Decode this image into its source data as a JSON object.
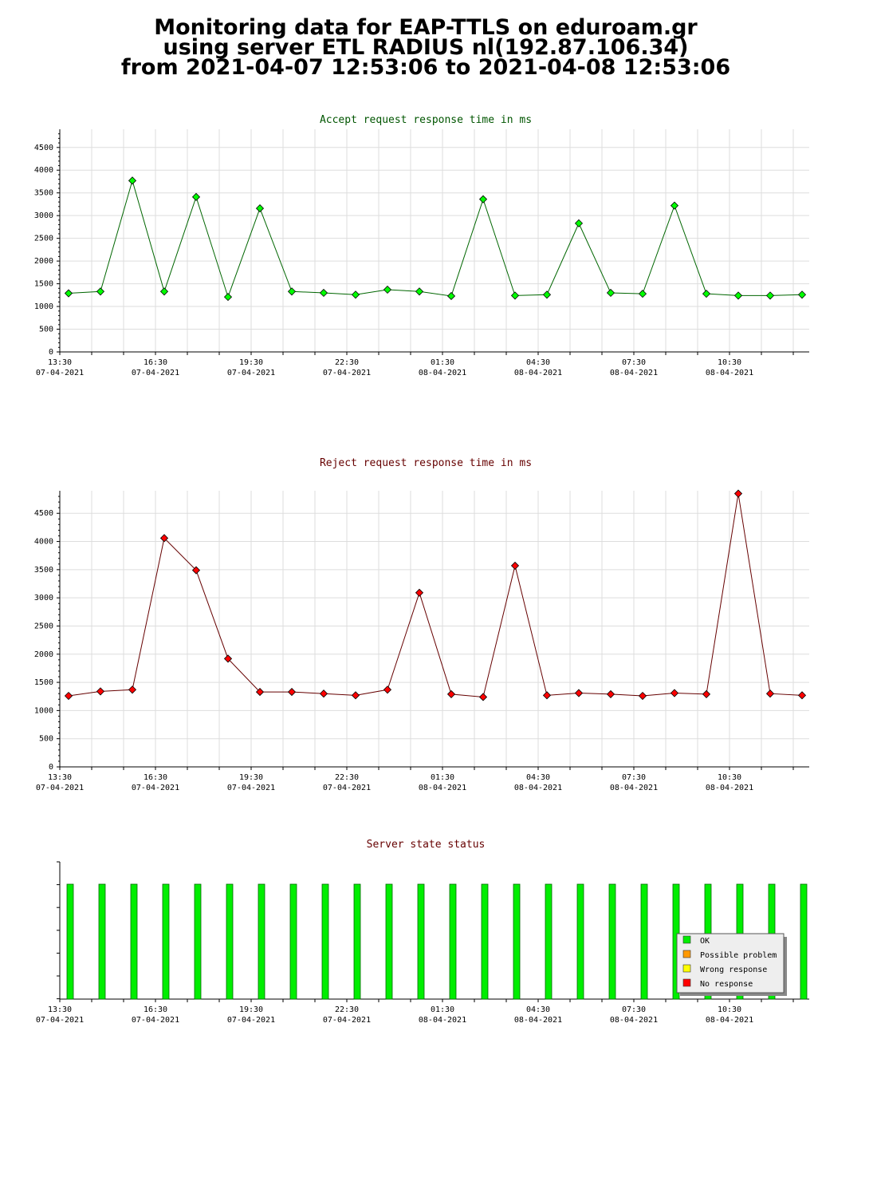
{
  "title_lines": [
    "Monitoring data for EAP-TTLS on eduroam.gr",
    "using server ETL RADIUS nl(192.87.106.34)",
    "from 2021-04-07 12:53:06 to 2021-04-08 12:53:06"
  ],
  "x_axis": {
    "ticks": [
      {
        "time": "13:30",
        "date": "07-04-2021"
      },
      {
        "time": "16:30",
        "date": "07-04-2021"
      },
      {
        "time": "19:30",
        "date": "07-04-2021"
      },
      {
        "time": "22:30",
        "date": "07-04-2021"
      },
      {
        "time": "01:30",
        "date": "08-04-2021"
      },
      {
        "time": "04:30",
        "date": "08-04-2021"
      },
      {
        "time": "07:30",
        "date": "08-04-2021"
      },
      {
        "time": "10:30",
        "date": "08-04-2021"
      }
    ]
  },
  "colors": {
    "accept_marker": "#00ff00",
    "accept_line": "#006600",
    "reject_marker": "#ff0000",
    "reject_line": "#660000",
    "ok_bar": "#00ee00",
    "possible_problem": "#ff9900",
    "wrong_response": "#ffff00",
    "no_response": "#ff0000"
  },
  "chart_data": [
    {
      "type": "line",
      "title": "Accept request response time in ms",
      "x": [
        "13:53",
        "14:53",
        "15:53",
        "16:53",
        "17:53",
        "18:53",
        "19:53",
        "20:53",
        "21:53",
        "22:53",
        "23:53",
        "00:53",
        "01:53",
        "02:53",
        "03:53",
        "04:53",
        "05:53",
        "06:53",
        "07:53",
        "08:53",
        "09:53",
        "10:53",
        "11:53",
        "12:53"
      ],
      "values": [
        1290,
        1330,
        3770,
        1330,
        3410,
        1210,
        3160,
        1330,
        1300,
        1260,
        1370,
        1330,
        1230,
        3360,
        1240,
        1260,
        2830,
        1300,
        1280,
        3220,
        1280,
        1240,
        1240,
        1260
      ],
      "ylim": [
        0,
        4900
      ],
      "yticks": [
        0,
        500,
        1000,
        1500,
        2000,
        2500,
        3000,
        3500,
        4000,
        4500
      ],
      "grid": true
    },
    {
      "type": "line",
      "title": "Reject request response time in ms",
      "x": [
        "13:53",
        "14:53",
        "15:53",
        "16:53",
        "17:53",
        "18:53",
        "19:53",
        "20:53",
        "21:53",
        "22:53",
        "23:53",
        "00:53",
        "01:53",
        "02:53",
        "03:53",
        "04:53",
        "05:53",
        "06:53",
        "07:53",
        "08:53",
        "09:53",
        "10:53",
        "11:53",
        "12:53"
      ],
      "values": [
        1260,
        1340,
        1370,
        4060,
        3490,
        1920,
        1330,
        1330,
        1300,
        1270,
        1370,
        3090,
        1290,
        1240,
        3570,
        1270,
        1310,
        1290,
        1260,
        1310,
        1290,
        4850,
        1300,
        1270
      ],
      "ylim": [
        0,
        4900
      ],
      "yticks": [
        0,
        500,
        1000,
        1500,
        2000,
        2500,
        3000,
        3500,
        4000,
        4500
      ],
      "grid": true
    },
    {
      "type": "bar",
      "title": "Server state status",
      "x": [
        "13:53",
        "14:53",
        "15:53",
        "16:53",
        "17:53",
        "18:53",
        "19:53",
        "20:53",
        "21:53",
        "22:53",
        "23:53",
        "00:53",
        "01:53",
        "02:53",
        "03:53",
        "04:53",
        "05:53",
        "06:53",
        "07:53",
        "08:53",
        "09:53",
        "10:53",
        "11:53",
        "12:53"
      ],
      "states": [
        "OK",
        "OK",
        "OK",
        "OK",
        "OK",
        "OK",
        "OK",
        "OK",
        "OK",
        "OK",
        "OK",
        "OK",
        "OK",
        "OK",
        "OK",
        "OK",
        "OK",
        "OK",
        "OK",
        "OK",
        "OK",
        "OK",
        "OK",
        "OK"
      ],
      "legend": [
        "OK",
        "Possible problem",
        "Wrong response",
        "No response"
      ],
      "legend_position": "bottom-right"
    }
  ]
}
